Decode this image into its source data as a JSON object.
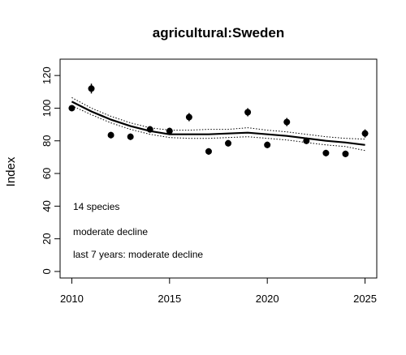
{
  "chart_data": {
    "type": "scatter",
    "title": "agricultural:Sweden",
    "xlabel": "",
    "ylabel": "Index",
    "xlim": [
      2009.4,
      2025.6
    ],
    "ylim": [
      -4,
      130
    ],
    "x_ticks": [
      2010,
      2015,
      2020,
      2025
    ],
    "y_ticks": [
      0,
      20,
      40,
      60,
      80,
      100,
      120
    ],
    "grid": false,
    "points": {
      "x": [
        2010,
        2011,
        2012,
        2013,
        2014,
        2015,
        2016,
        2017,
        2018,
        2019,
        2020,
        2021,
        2022,
        2023,
        2024,
        2025
      ],
      "y": [
        100,
        112,
        83.5,
        82.5,
        87,
        86,
        94.5,
        73.5,
        78.5,
        97.5,
        77.5,
        91.5,
        80,
        72.5,
        72,
        84.5
      ],
      "err": [
        1.2,
        3,
        2,
        2,
        2,
        2,
        2.5,
        2,
        2,
        2.5,
        2,
        2.5,
        2,
        2,
        2,
        2.5
      ]
    },
    "trend": {
      "x": [
        2010,
        2011,
        2012,
        2013,
        2014,
        2015,
        2016,
        2017,
        2018,
        2019,
        2020,
        2021,
        2022,
        2023,
        2024,
        2025
      ],
      "y": [
        104,
        98,
        93,
        89,
        86,
        84,
        84,
        84,
        84.5,
        85,
        84,
        83,
        81.5,
        80,
        79,
        77.5
      ],
      "upper": [
        106.5,
        100,
        95,
        91,
        88,
        86.5,
        86.5,
        87,
        87,
        88,
        86.5,
        85.5,
        84,
        82.5,
        81.5,
        81
      ],
      "lower": [
        101.5,
        96,
        91,
        87,
        84,
        82,
        81.5,
        81.5,
        82,
        82.5,
        81.5,
        80.5,
        79,
        77.5,
        76.5,
        74
      ]
    },
    "annotations": [
      "14 species",
      "moderate decline",
      "last 7 years: moderate decline"
    ]
  }
}
